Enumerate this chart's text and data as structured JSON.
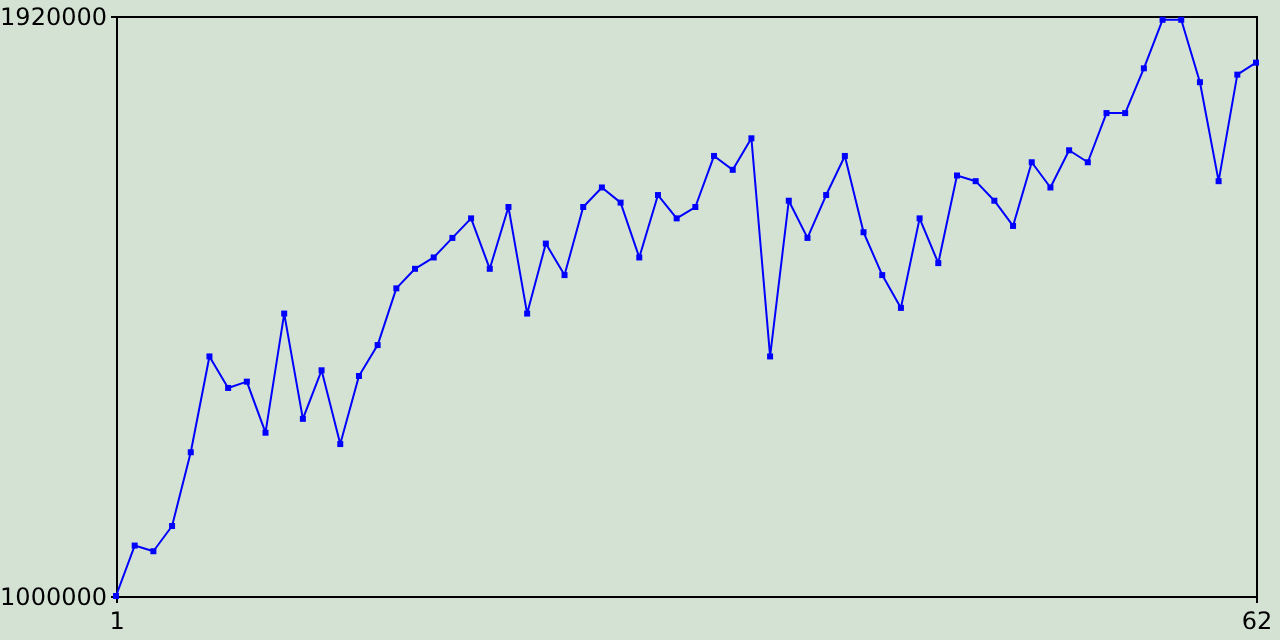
{
  "chart_data": {
    "type": "line",
    "x": [
      1,
      2,
      3,
      4,
      5,
      6,
      7,
      8,
      9,
      10,
      11,
      12,
      13,
      14,
      15,
      16,
      17,
      18,
      19,
      20,
      21,
      22,
      23,
      24,
      25,
      26,
      27,
      28,
      29,
      30,
      31,
      32,
      33,
      34,
      35,
      36,
      37,
      38,
      39,
      40,
      41,
      42,
      43,
      44,
      45,
      46,
      47,
      48,
      49,
      50,
      51,
      52,
      53,
      54,
      55,
      56,
      57,
      58,
      59,
      60,
      61,
      62
    ],
    "series": [
      {
        "color": "#0000ff",
        "values": [
          1000000,
          1080000,
          1071000,
          1111000,
          1228000,
          1380000,
          1330000,
          1340000,
          1259000,
          1448000,
          1281000,
          1358000,
          1241000,
          1349000,
          1398000,
          1488000,
          1519000,
          1537000,
          1568000,
          1599000,
          1519000,
          1617000,
          1448000,
          1559000,
          1509000,
          1617000,
          1648000,
          1624000,
          1537000,
          1636000,
          1599000,
          1617000,
          1698000,
          1676000,
          1726000,
          1380000,
          1627000,
          1568000,
          1636000,
          1698000,
          1577000,
          1509000,
          1457000,
          1599000,
          1528000,
          1667000,
          1658000,
          1627000,
          1587000,
          1688000,
          1648000,
          1707000,
          1688000,
          1766000,
          1766000,
          1837000,
          1914000,
          1914000,
          1815000,
          1658000,
          1827000,
          1846000
        ]
      }
    ],
    "xlim": [
      1,
      62
    ],
    "xticks": [
      1,
      62
    ],
    "ylim": [
      1000000,
      1920000
    ],
    "yticks": [
      1000000,
      1920000
    ],
    "marker": "square",
    "line_style": "solid",
    "grid": false
  }
}
